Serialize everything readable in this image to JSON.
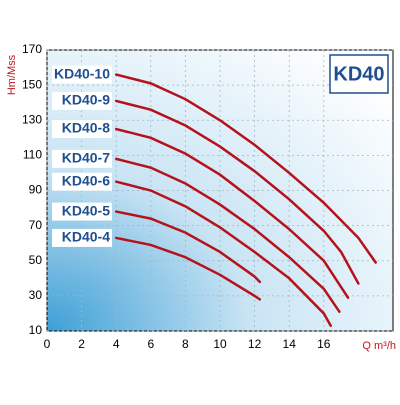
{
  "chart_data": {
    "type": "line",
    "title": "KD40",
    "x_label": "Q m³/h",
    "y_label": "Hm/Mss",
    "xlim": [
      0,
      20
    ],
    "ylim": [
      10,
      170
    ],
    "xticks": [
      0,
      2,
      4,
      6,
      8,
      10,
      12,
      14,
      16
    ],
    "yticks": [
      10,
      30,
      50,
      70,
      90,
      110,
      130,
      150,
      170
    ],
    "grid": true,
    "series": [
      {
        "name": "KD40-10",
        "color": "#b5121b",
        "x": [
          4,
          6,
          8,
          10,
          12,
          14,
          16,
          18,
          19
        ],
        "values": [
          156,
          151,
          142,
          130,
          116,
          100,
          83,
          63,
          49
        ]
      },
      {
        "name": "KD40-9",
        "color": "#b5121b",
        "x": [
          4,
          6,
          8,
          10,
          12,
          14,
          16,
          17,
          18
        ],
        "values": [
          141,
          136,
          127,
          115,
          101,
          85,
          67,
          55,
          37
        ]
      },
      {
        "name": "KD40-8",
        "color": "#b5121b",
        "x": [
          4,
          6,
          8,
          10,
          12,
          14,
          16,
          17.4
        ],
        "values": [
          125,
          120,
          111,
          99,
          84,
          68,
          50,
          29
        ]
      },
      {
        "name": "KD40-7",
        "color": "#b5121b",
        "x": [
          4,
          6,
          8,
          10,
          12,
          14,
          16,
          16.9
        ],
        "values": [
          108,
          103,
          94,
          82,
          68,
          52,
          34,
          21
        ]
      },
      {
        "name": "KD40-6",
        "color": "#b5121b",
        "x": [
          4,
          6,
          8,
          10,
          12,
          14,
          16,
          16.4
        ],
        "values": [
          95,
          90,
          81,
          69,
          55,
          40,
          20,
          13
        ]
      },
      {
        "name": "KD40-5",
        "color": "#b5121b",
        "x": [
          4,
          6,
          8,
          10,
          12,
          12.3
        ],
        "values": [
          78,
          74,
          66,
          55,
          41,
          38
        ]
      },
      {
        "name": "KD40-4",
        "color": "#b5121b",
        "x": [
          4,
          6,
          8,
          10,
          12,
          12.3
        ],
        "values": [
          63,
          59,
          52,
          42,
          30,
          28
        ]
      }
    ]
  }
}
